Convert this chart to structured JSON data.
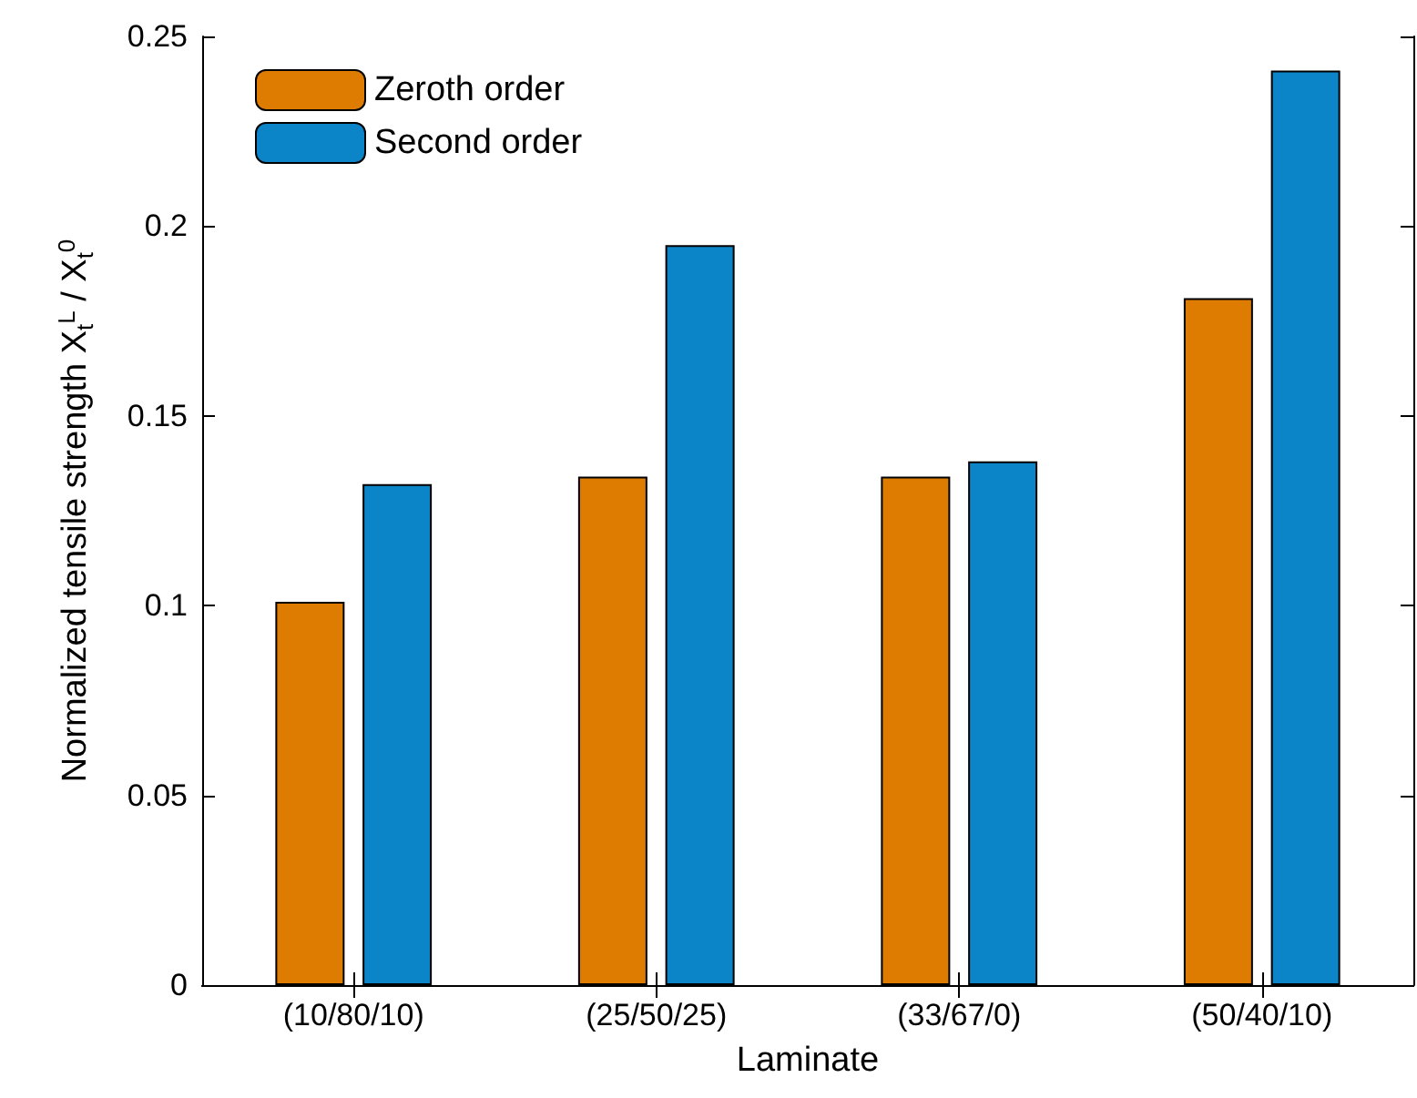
{
  "chart_data": {
    "type": "bar",
    "xlabel": "Laminate",
    "ylabel": "Normalized tensile strength X$_{t}$$^{L}$ / X$_{t}$$^{0}$",
    "categories": [
      "(10/80/10)",
      "(25/50/25)",
      "(33/67/0)",
      "(50/40/10)"
    ],
    "series": [
      {
        "name": "Zeroth order",
        "color": "#dd7c00",
        "values": [
          0.101,
          0.134,
          0.134,
          0.181
        ]
      },
      {
        "name": "Second order",
        "color": "#0b84c8",
        "values": [
          0.132,
          0.195,
          0.138,
          0.241
        ]
      }
    ],
    "ylim": [
      0,
      0.25
    ],
    "yticks": [
      0,
      0.05,
      0.1,
      0.15,
      0.2,
      0.25
    ],
    "grid": false,
    "legend": "top left"
  }
}
